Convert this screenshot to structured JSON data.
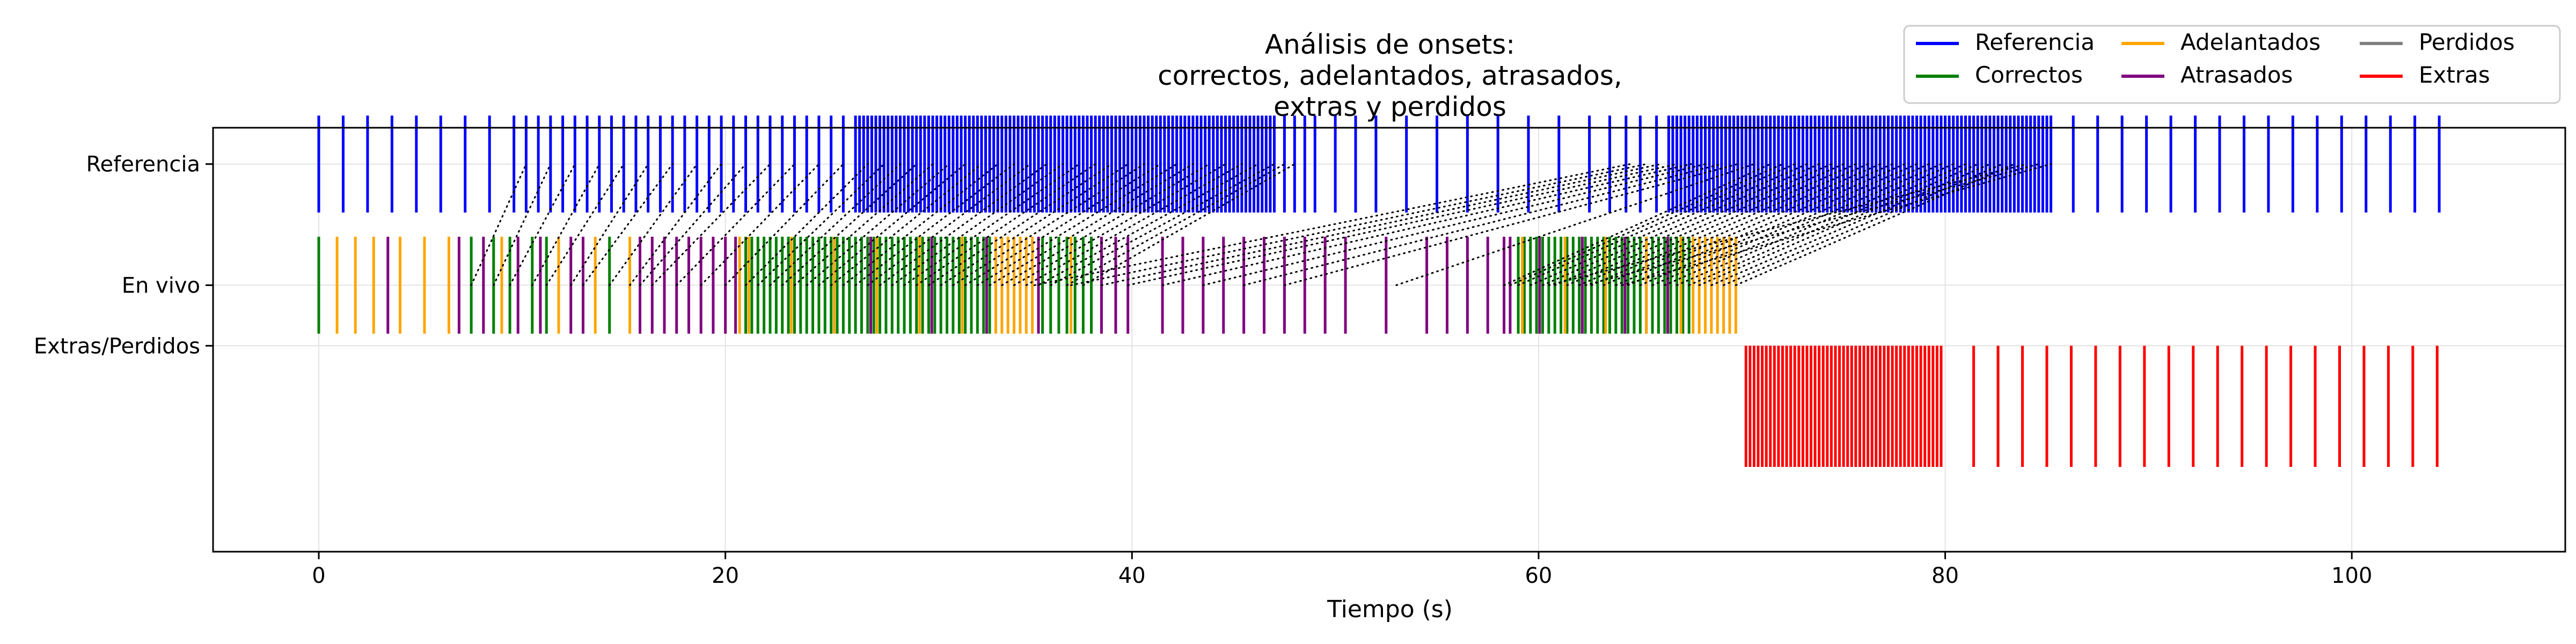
{
  "chart_data": {
    "type": "scatter",
    "title_lines": [
      "Análisis de onsets:",
      "correctos, adelantados, atrasados,",
      "extras y perdidos"
    ],
    "xlabel": "Tiempo (s)",
    "ylabel": "",
    "xlim": [
      -5.2,
      110.5
    ],
    "ylim": [
      -2.2,
      1.3
    ],
    "x_ticks": [
      0,
      20,
      40,
      60,
      80,
      100
    ],
    "y_ticks": [
      {
        "value": 1,
        "label": "Referencia"
      },
      {
        "value": 0,
        "label": "En vivo"
      },
      {
        "value": -0.5,
        "label": "Extras/Perdidos"
      }
    ],
    "grid": true,
    "legend": {
      "placement": "top-right",
      "columns": 3,
      "entries": [
        {
          "label": "Referencia",
          "color": "#0000ff"
        },
        {
          "label": "Correctos",
          "color": "#008000"
        },
        {
          "label": "Adelantados",
          "color": "#ffa500"
        },
        {
          "label": "Atrasados",
          "color": "#800080"
        },
        {
          "label": "Perdidos",
          "color": "#808080"
        },
        {
          "label": "Extras",
          "color": "#ff0000"
        }
      ]
    },
    "series": [
      {
        "name": "Referencia",
        "color": "#0000ff",
        "y_range": [
          0.6,
          1.4
        ],
        "x": [
          0,
          1.2,
          2.4,
          3.6,
          4.8,
          6.0,
          7.2,
          8.4,
          9.6,
          10.2,
          10.8,
          11.4,
          12.0,
          12.6,
          13.2,
          13.8,
          14.4,
          15.0,
          15.6,
          16.2,
          16.8,
          17.4,
          18.0,
          18.6,
          19.2,
          19.8,
          20.4,
          21.0,
          21.6,
          22.2,
          22.8,
          23.4,
          24.0,
          24.6,
          25.2,
          25.8,
          26.4,
          26.6,
          26.8,
          27.0,
          27.2,
          27.4,
          27.6,
          27.8,
          28.0,
          28.2,
          28.4,
          28.6,
          28.8,
          29.0,
          29.2,
          29.4,
          29.6,
          29.8,
          30.0,
          30.2,
          30.4,
          30.6,
          30.8,
          31.0,
          31.2,
          31.4,
          31.6,
          31.8,
          32.0,
          32.2,
          32.4,
          32.6,
          32.8,
          33.0,
          33.2,
          33.4,
          33.6,
          33.8,
          34.0,
          34.2,
          34.4,
          34.6,
          34.8,
          35.0,
          35.2,
          35.4,
          35.6,
          35.8,
          36.0,
          36.2,
          36.4,
          36.6,
          36.8,
          37.0,
          37.2,
          37.4,
          37.6,
          37.8,
          38.0,
          38.2,
          38.4,
          38.6,
          38.8,
          39.0,
          39.2,
          39.4,
          39.6,
          39.8,
          40.0,
          40.2,
          40.4,
          40.6,
          40.8,
          41.0,
          41.2,
          41.4,
          41.6,
          41.8,
          42.0,
          42.2,
          42.4,
          42.6,
          42.8,
          43.0,
          43.2,
          43.4,
          43.6,
          43.8,
          44.0,
          44.2,
          44.4,
          44.6,
          44.8,
          45.0,
          45.2,
          45.4,
          45.6,
          45.8,
          46.0,
          46.2,
          46.4,
          46.6,
          46.8,
          47.0,
          47.5,
          48.0,
          48.5,
          49.0,
          50.0,
          51.0,
          52.0,
          53.5,
          55.0,
          56.5,
          58.0,
          59.5,
          61.0,
          62.5,
          63.5,
          64.3,
          65.0,
          65.8,
          66.4,
          66.6,
          66.8,
          67.0,
          67.2,
          67.4,
          67.6,
          67.8,
          68.0,
          68.2,
          68.4,
          68.6,
          68.8,
          69.0,
          69.2,
          69.4,
          69.6,
          69.8,
          70.0,
          70.2,
          70.4,
          70.6,
          70.8,
          71.0,
          71.2,
          71.4,
          71.6,
          71.8,
          72.0,
          72.2,
          72.4,
          72.6,
          72.8,
          73.0,
          73.2,
          73.4,
          73.6,
          73.8,
          74.0,
          74.2,
          74.4,
          74.6,
          74.8,
          75.0,
          75.2,
          75.4,
          75.6,
          75.8,
          76.0,
          76.2,
          76.4,
          76.6,
          76.8,
          77.0,
          77.2,
          77.4,
          77.6,
          77.8,
          78.0,
          78.2,
          78.4,
          78.6,
          78.8,
          79.0,
          79.2,
          79.4,
          79.6,
          79.8,
          80.0,
          80.2,
          80.4,
          80.6,
          80.8,
          81.0,
          81.2,
          81.4,
          81.6,
          81.8,
          82.0,
          82.2,
          82.4,
          82.6,
          82.8,
          83.0,
          83.2,
          83.4,
          83.6,
          83.8,
          84.0,
          84.2,
          84.4,
          84.6,
          84.8,
          85.0,
          85.2,
          86.3,
          87.5,
          88.7,
          89.9,
          91.1,
          92.3,
          93.5,
          94.7,
          95.9,
          97.1,
          98.3,
          99.5,
          100.7,
          101.9,
          103.1,
          104.3
        ]
      },
      {
        "name": "Correctos",
        "color": "#008000",
        "y_range": [
          -0.4,
          0.4
        ],
        "x": [
          0,
          7.5,
          8.6,
          9.4,
          10.5,
          11.2,
          14.3,
          21.0,
          21.3,
          21.6,
          21.9,
          22.2,
          22.5,
          22.8,
          23.1,
          23.4,
          23.7,
          24.0,
          24.3,
          24.6,
          24.9,
          25.2,
          25.5,
          25.8,
          26.1,
          26.4,
          26.7,
          27.0,
          27.3,
          27.6,
          27.9,
          28.2,
          28.5,
          28.8,
          29.1,
          29.4,
          29.7,
          30.0,
          30.3,
          30.6,
          30.9,
          31.2,
          31.5,
          31.8,
          32.1,
          32.4,
          32.7,
          33.0,
          35.6,
          36.0,
          36.4,
          36.8,
          37.2,
          37.6,
          38.0,
          59.0,
          59.3,
          59.6,
          59.9,
          60.2,
          60.5,
          60.8,
          61.1,
          61.4,
          61.7,
          62.0,
          62.3,
          62.6,
          62.9,
          63.2,
          63.5,
          63.8,
          64.1,
          64.4,
          64.7,
          65.0,
          65.3,
          65.6,
          65.9,
          66.2,
          66.5,
          66.8,
          67.1,
          67.4
        ]
      },
      {
        "name": "Adelantados",
        "color": "#ffa500",
        "y_range": [
          -0.4,
          0.4
        ],
        "x": [
          0.9,
          1.8,
          2.7,
          4.0,
          5.2,
          6.4,
          9.0,
          11.8,
          13.6,
          15.3,
          20.7,
          21.15,
          23.25,
          25.35,
          27.45,
          29.55,
          31.65,
          33.3,
          33.6,
          33.9,
          34.2,
          34.5,
          34.8,
          35.1,
          37.0,
          59.2,
          61.3,
          63.3,
          65.3,
          67.0,
          67.6,
          67.9,
          68.2,
          68.5,
          68.8,
          69.1,
          69.4,
          69.7
        ]
      },
      {
        "name": "Atrasados",
        "color": "#800080",
        "y_range": [
          -0.4,
          0.4
        ],
        "x": [
          3.4,
          6.9,
          8.1,
          9.8,
          10.9,
          12.4,
          13.0,
          15.8,
          16.4,
          17.0,
          17.6,
          18.2,
          18.8,
          19.4,
          20.0,
          20.5,
          27.15,
          30.15,
          32.85,
          35.4,
          38.5,
          39.2,
          39.8,
          41.5,
          42.5,
          43.5,
          44.5,
          45.5,
          46.5,
          47.5,
          48.5,
          49.5,
          50.5,
          52.5,
          54.5,
          55.5,
          56.5,
          57.5,
          58.3,
          58.6,
          60.05,
          62.15,
          64.25,
          66.35
        ]
      },
      {
        "name": "Extras",
        "color": "#ff0000",
        "y_range": [
          -1.5,
          -0.5
        ],
        "x": [
          70.2,
          70.4,
          70.6,
          70.8,
          71.0,
          71.2,
          71.4,
          71.6,
          71.8,
          72.0,
          72.2,
          72.4,
          72.6,
          72.8,
          73.0,
          73.2,
          73.4,
          73.6,
          73.8,
          74.0,
          74.2,
          74.4,
          74.6,
          74.8,
          75.0,
          75.2,
          75.4,
          75.6,
          75.8,
          76.0,
          76.2,
          76.4,
          76.6,
          76.8,
          77.0,
          77.2,
          77.4,
          77.6,
          77.8,
          78.0,
          78.2,
          78.4,
          78.6,
          78.8,
          79.0,
          79.2,
          79.4,
          79.6,
          79.8,
          81.4,
          82.6,
          83.8,
          85.0,
          86.2,
          87.4,
          88.6,
          89.8,
          91.0,
          92.2,
          93.4,
          94.6,
          95.8,
          97.0,
          98.2,
          99.4,
          100.6,
          101.8,
          103.0,
          104.2
        ]
      }
    ],
    "connectors": {
      "style": "dotted",
      "color": "#000000",
      "from_y": 0,
      "to_y": 1,
      "pairs": [
        [
          7.5,
          10.2
        ],
        [
          8.6,
          11.4
        ],
        [
          9.4,
          12.6
        ],
        [
          10.5,
          13.8
        ],
        [
          11.2,
          15.0
        ],
        [
          12.4,
          16.2
        ],
        [
          13.0,
          17.4
        ],
        [
          14.3,
          18.6
        ],
        [
          15.3,
          19.8
        ],
        [
          15.8,
          21.0
        ],
        [
          16.4,
          22.2
        ],
        [
          17.6,
          23.4
        ],
        [
          18.8,
          24.6
        ],
        [
          20.0,
          25.8
        ],
        [
          21.0,
          27.0
        ],
        [
          21.6,
          27.8
        ],
        [
          22.2,
          28.6
        ],
        [
          22.8,
          29.4
        ],
        [
          23.4,
          30.2
        ],
        [
          24.0,
          31.0
        ],
        [
          24.6,
          31.8
        ],
        [
          25.2,
          32.6
        ],
        [
          25.8,
          33.4
        ],
        [
          26.4,
          34.2
        ],
        [
          27.0,
          35.0
        ],
        [
          27.6,
          35.8
        ],
        [
          28.2,
          36.6
        ],
        [
          28.8,
          37.4
        ],
        [
          29.4,
          38.2
        ],
        [
          30.0,
          39.0
        ],
        [
          30.6,
          39.8
        ],
        [
          31.2,
          40.6
        ],
        [
          31.8,
          41.4
        ],
        [
          32.4,
          42.2
        ],
        [
          33.0,
          43.0
        ],
        [
          33.6,
          43.8
        ],
        [
          34.2,
          44.6
        ],
        [
          34.8,
          45.4
        ],
        [
          35.4,
          46.2
        ],
        [
          36.0,
          47.0
        ],
        [
          36.8,
          47.5
        ],
        [
          37.6,
          48.0
        ],
        [
          35.2,
          64.5
        ],
        [
          37.0,
          65.3
        ],
        [
          38.5,
          66.0
        ],
        [
          39.8,
          66.8
        ],
        [
          41.5,
          67.5
        ],
        [
          43.5,
          68.2
        ],
        [
          45.5,
          69.0
        ],
        [
          47.5,
          69.8
        ],
        [
          53.0,
          70.6
        ],
        [
          58.3,
          71.4
        ],
        [
          58.6,
          72.0
        ],
        [
          59.0,
          72.6
        ],
        [
          59.6,
          73.2
        ],
        [
          60.2,
          73.8
        ],
        [
          60.8,
          74.4
        ],
        [
          61.4,
          75.0
        ],
        [
          62.0,
          75.6
        ],
        [
          62.6,
          76.2
        ],
        [
          63.2,
          76.8
        ],
        [
          63.8,
          77.4
        ],
        [
          64.4,
          78.0
        ],
        [
          65.0,
          78.6
        ],
        [
          65.6,
          79.2
        ],
        [
          66.2,
          79.8
        ],
        [
          66.8,
          80.4
        ],
        [
          67.4,
          81.0
        ],
        [
          67.9,
          81.6
        ],
        [
          68.5,
          82.2
        ],
        [
          69.1,
          82.8
        ],
        [
          69.7,
          83.4
        ],
        [
          60.5,
          84.0
        ],
        [
          62.3,
          84.6
        ],
        [
          64.1,
          85.2
        ]
      ]
    }
  }
}
